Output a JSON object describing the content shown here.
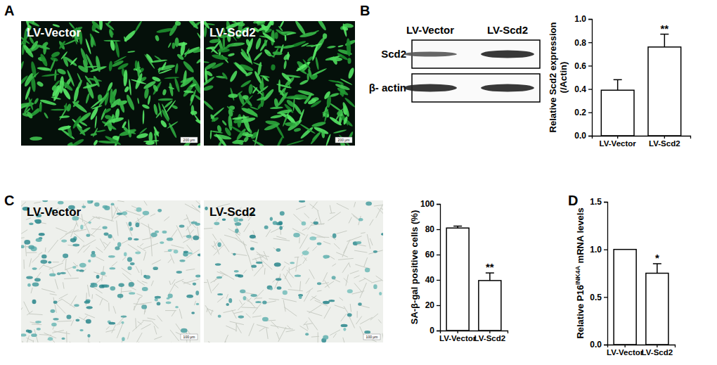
{
  "panels": [
    {
      "label": "A",
      "images": [
        "LV-Vector",
        "LV-Scd2"
      ],
      "scale_bar": "200 μm"
    },
    {
      "label": "B",
      "blot": {
        "columns": [
          "LV-Vector",
          "LV-Scd2"
        ],
        "rows": [
          "Scd2",
          "β- actin"
        ]
      }
    },
    {
      "label": "C",
      "images": [
        "LV-Vector",
        "LV-Scd2"
      ],
      "scale_bar": "100 μm"
    },
    {
      "label": "D"
    }
  ],
  "chart_data": [
    {
      "type": "bar",
      "y_label": [
        "Relative Scd2 expression",
        "(/Actin)"
      ],
      "categories": [
        "LV-Vector",
        "LV-Scd2"
      ],
      "values": [
        0.39,
        0.76
      ],
      "errors": [
        0.09,
        0.11
      ],
      "significance": [
        null,
        "**"
      ],
      "color": "#ffffff",
      "ylim": [
        0,
        1.0
      ],
      "yticks": [
        {
          "value": 0,
          "label": "0.0"
        },
        {
          "value": 0.2,
          "label": "0.2"
        },
        {
          "value": 0.4,
          "label": "0.4"
        },
        {
          "value": 0.6,
          "label": "0.6"
        },
        {
          "value": 0.8,
          "label": "0.8"
        },
        {
          "value": 1.0,
          "label": "1.0"
        }
      ]
    },
    {
      "type": "bar",
      "y_label": "SA-β-gal positive cells (%)",
      "categories": [
        "LV-Vector",
        "LV-Scd2"
      ],
      "values": [
        81,
        39.5
      ],
      "errors": [
        1.5,
        6
      ],
      "significance": [
        null,
        "**"
      ],
      "color": "#ffffff",
      "ylim": [
        0,
        100
      ],
      "yticks": [
        0,
        20,
        40,
        60,
        80,
        100
      ]
    },
    {
      "type": "bar",
      "y_label": {
        "text": "Relative P16",
        "sup": "INK4A",
        "tail": " mRNA levels"
      },
      "categories": [
        "LV-Vector",
        "LV-Scd2"
      ],
      "values": [
        1.0,
        0.75
      ],
      "errors": [
        null,
        0.1
      ],
      "significance": [
        null,
        "*"
      ],
      "color": "#ffffff",
      "ylim": [
        0,
        1.5
      ],
      "yticks": [
        {
          "value": 0,
          "label": "0.0"
        },
        {
          "value": 0.5,
          "label": "0.5"
        },
        {
          "value": 1.0,
          "label": "1.0"
        },
        {
          "value": 1.5,
          "label": "1.5"
        }
      ]
    }
  ]
}
